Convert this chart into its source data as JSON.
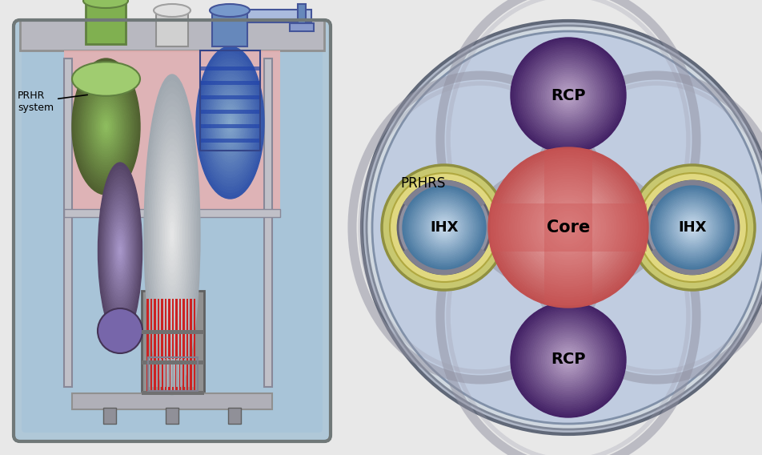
{
  "bg_color": "#e8e8e8",
  "left_panel": {
    "vessel_outer_color": "#a0a0a0",
    "vessel_inner_color": "#c8dce8",
    "vessel_top_color": "#b0b0b8",
    "hot_region_color": "#e8b0b0",
    "water_color": "#a8c4d8",
    "core_red_color": "#cc2222",
    "green_cylinder_color": "#7aaa5a",
    "silver_cylinder_color": "#c8c8c8",
    "blue_cylinder_color": "#6699cc",
    "purple_component_color": "#8877aa",
    "annotation_text": "PRHR\nsystem"
  },
  "right_panel": {
    "outer_ring_color": "#b0b8c8",
    "outer_ring_dark": "#808090",
    "inner_bg_color": "#b8c8d8",
    "loop_ellipse_color": "#9090a0",
    "core_center_color": "#e8a0a0",
    "core_dark_color": "#cc6666",
    "ihx_ring_outer": "#b8c070",
    "ihx_ring_inner": "#d0c880",
    "ihx_ball_color": "#8ab0cc",
    "ihx_ball_dark": "#6090b0",
    "rcp_ball_color": "#9988bb",
    "rcp_ball_dark": "#664488",
    "labels": {
      "rcp_top": "RCP",
      "rcp_bottom": "RCP",
      "ihx_left": "IHX",
      "ihx_right": "IHX",
      "core": "Core",
      "prhrs": "PRHRS"
    }
  }
}
